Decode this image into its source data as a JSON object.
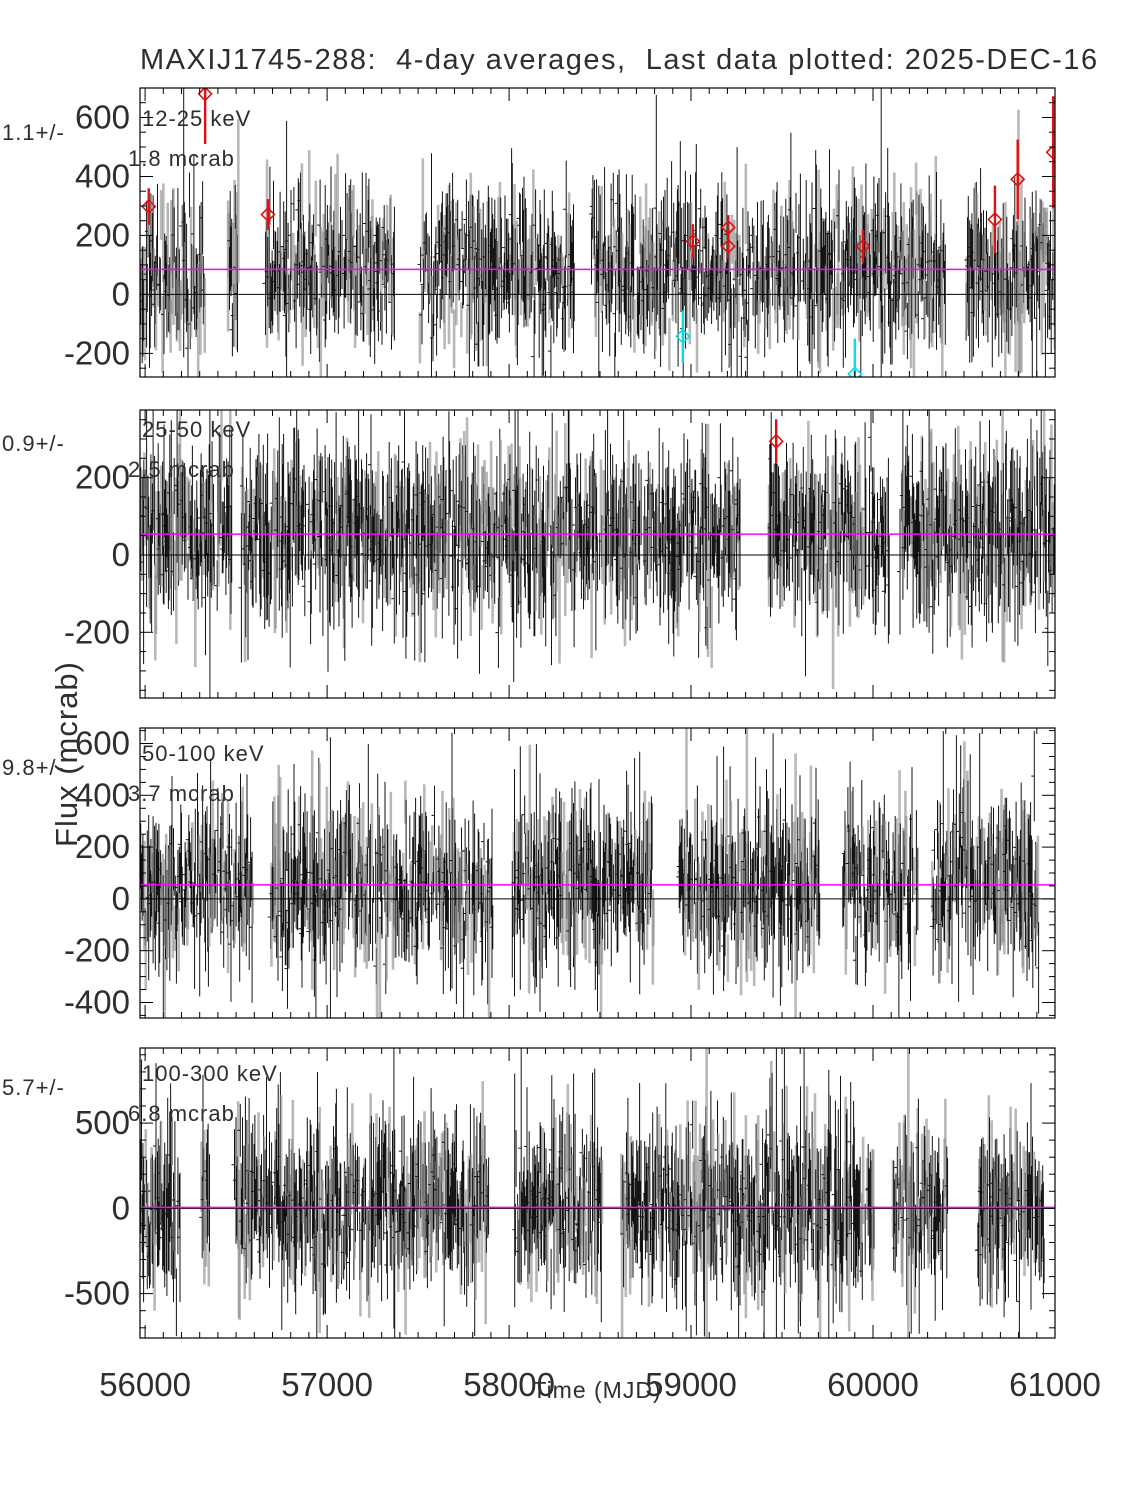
{
  "title": "MAXIJ1745-288:  4-day averages,  Last data plotted: 2025-DEC-16",
  "axes": {
    "x_label": "Time (MJD)",
    "y_label": "Flux (mcrab)",
    "x_ticks": [
      56000,
      57000,
      58000,
      59000,
      60000,
      61000
    ],
    "x_range": [
      55972,
      61000
    ],
    "x_minor_step": 100
  },
  "colors": {
    "mean_line": "#ff00ff",
    "high_outlier": "#dd1111",
    "low_outlier": "#00e0e6",
    "data": "#131313",
    "data_soft": "#8a8a8a",
    "frame": "#000000"
  },
  "chart_data": [
    {
      "type": "errorbar-lightcurve",
      "band_label": "12-25 keV",
      "stats_label": "1.1+/-",
      "err_label": "1.8 mcrab",
      "ylim": [
        -280,
        700
      ],
      "yticks": [
        -200,
        0,
        200,
        400,
        600
      ],
      "y_minor_step": 50,
      "zero_line": 0,
      "mean_line": 85,
      "noise": {
        "cadence_days": 4,
        "mean": 85,
        "scatter": 100,
        "err_min": 55,
        "err_scale": 85,
        "tall_frac": 0.05,
        "gap_prob": 0.1
      },
      "special_points": [
        {
          "x": 56020,
          "y": 298,
          "err": 62,
          "kind": "high"
        },
        {
          "x": 56330,
          "y": 680,
          "err": 170,
          "kind": "high"
        },
        {
          "x": 56675,
          "y": 271,
          "err": 52,
          "kind": "high"
        },
        {
          "x": 58955,
          "y": -142,
          "err": 88,
          "kind": "low"
        },
        {
          "x": 59010,
          "y": 180,
          "err": 58,
          "kind": "high"
        },
        {
          "x": 59205,
          "y": 227,
          "err": 42,
          "kind": "high"
        },
        {
          "x": 59205,
          "y": 163,
          "err": 42,
          "kind": "high"
        },
        {
          "x": 59900,
          "y": -270,
          "err": 120,
          "kind": "low"
        },
        {
          "x": 59945,
          "y": 163,
          "err": 55,
          "kind": "high"
        },
        {
          "x": 60670,
          "y": 254,
          "err": 115,
          "kind": "high"
        },
        {
          "x": 60795,
          "y": 390,
          "err": 135,
          "kind": "high"
        },
        {
          "x": 60990,
          "y": 482,
          "err": 190,
          "kind": "high"
        }
      ]
    },
    {
      "type": "errorbar-lightcurve",
      "band_label": "25-50 keV",
      "stats_label": "0.9+/-",
      "err_label": "2.5 mcrab",
      "ylim": [
        -370,
        375
      ],
      "yticks": [
        -200,
        0,
        200
      ],
      "y_minor_step": 50,
      "zero_line": 0,
      "mean_line": 54,
      "noise": {
        "cadence_days": 4,
        "mean": 54,
        "scatter": 80,
        "err_min": 55,
        "err_scale": 70,
        "tall_frac": 0.05,
        "gap_prob": 0.08
      },
      "special_points": [
        {
          "x": 59468,
          "y": 294,
          "err": 57,
          "kind": "high"
        }
      ]
    },
    {
      "type": "errorbar-lightcurve",
      "band_label": "50-100 keV",
      "stats_label": "9.8+/-",
      "err_label": "3.7 mcrab",
      "ylim": [
        -460,
        660
      ],
      "yticks": [
        -400,
        -200,
        0,
        200,
        400,
        600
      ],
      "y_minor_step": 50,
      "zero_line": 0,
      "mean_line": 54,
      "noise": {
        "cadence_days": 4,
        "mean": 54,
        "scatter": 115,
        "err_min": 70,
        "err_scale": 105,
        "tall_frac": 0.05,
        "gap_prob": 0.08
      },
      "special_points": []
    },
    {
      "type": "errorbar-lightcurve",
      "band_label": "100-300 keV",
      "stats_label": "5.7+/-",
      "err_label": "6.8 mcrab",
      "ylim": [
        -760,
        940
      ],
      "yticks": [
        -500,
        0,
        500
      ],
      "y_minor_step": 100,
      "zero_line": 0,
      "mean_line": 6,
      "noise": {
        "cadence_days": 4,
        "mean": 6,
        "scatter": 175,
        "err_min": 120,
        "err_scale": 165,
        "tall_frac": 0.05,
        "gap_prob": 0.08
      },
      "special_points": []
    }
  ]
}
